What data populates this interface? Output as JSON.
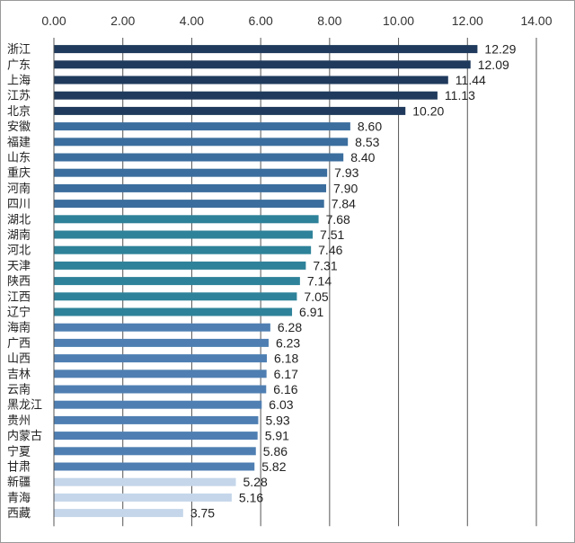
{
  "chart_data": {
    "type": "bar",
    "orientation": "horizontal",
    "categories": [
      "浙江",
      "广东",
      "上海",
      "江苏",
      "北京",
      "安徽",
      "福建",
      "山东",
      "重庆",
      "河南",
      "四川",
      "湖北",
      "湖南",
      "河北",
      "天津",
      "陕西",
      "江西",
      "辽宁",
      "海南",
      "广西",
      "山西",
      "吉林",
      "云南",
      "黑龙江",
      "贵州",
      "内蒙古",
      "宁夏",
      "甘肃",
      "新疆",
      "青海",
      "西藏"
    ],
    "values": [
      12.29,
      12.09,
      11.44,
      11.13,
      10.2,
      8.6,
      8.53,
      8.4,
      7.93,
      7.9,
      7.84,
      7.68,
      7.51,
      7.46,
      7.31,
      7.14,
      7.05,
      6.91,
      6.28,
      6.23,
      6.18,
      6.17,
      6.16,
      6.03,
      5.93,
      5.91,
      5.86,
      5.82,
      5.28,
      5.16,
      3.75
    ],
    "value_labels": [
      "12.29",
      "12.09",
      "11.44",
      "11.13",
      "10.20",
      "8.60",
      "8.53",
      "8.40",
      "7.93",
      "7.90",
      "7.84",
      "7.68",
      "7.51",
      "7.46",
      "7.31",
      "7.14",
      "7.05",
      "6.91",
      "6.28",
      "6.23",
      "6.18",
      "6.17",
      "6.16",
      "6.03",
      "5.93",
      "5.91",
      "5.86",
      "5.82",
      "5.28",
      "5.16",
      "3.75"
    ],
    "colors": [
      "#1f3a5c",
      "#1f3a5c",
      "#1f3a5c",
      "#1f3a5c",
      "#1f3a5c",
      "#3b6e9e",
      "#3b6e9e",
      "#3b6e9e",
      "#3b6e9e",
      "#3b6e9e",
      "#3b6e9e",
      "#2e8299",
      "#2e8299",
      "#2e8299",
      "#2e8299",
      "#2e8299",
      "#2e8299",
      "#2e8299",
      "#4f7fb2",
      "#4f7fb2",
      "#4f7fb2",
      "#4f7fb2",
      "#4f7fb2",
      "#4f7fb2",
      "#4f7fb2",
      "#4f7fb2",
      "#4f7fb2",
      "#4f7fb2",
      "#c5d6ea",
      "#c5d6ea",
      "#c5d6ea"
    ],
    "x_ticks": [
      "0.00",
      "2.00",
      "4.00",
      "6.00",
      "8.00",
      "10.00",
      "12.00",
      "14.00"
    ],
    "xlim": [
      0,
      14
    ],
    "x_axis_position": "top",
    "grid": true,
    "gridline_color": "#555555",
    "title": "",
    "xlabel": "",
    "ylabel": ""
  }
}
